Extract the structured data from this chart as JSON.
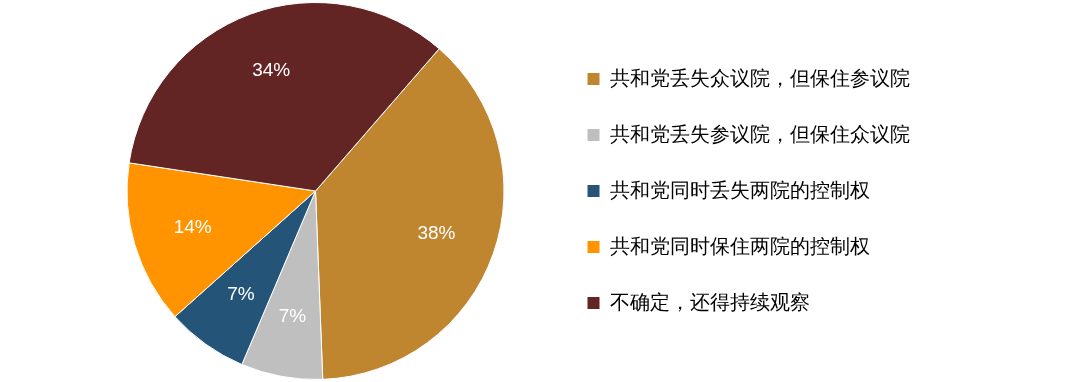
{
  "chart_data": {
    "type": "pie",
    "categories": [
      "共和党丢失众议院，但保住参议院",
      "共和党丢失参议院，但保住众议院",
      "共和党同时丢失两院的控制权",
      "共和党同时保住两院的控制权",
      "不确定，还得持续观察"
    ],
    "values": [
      38,
      7,
      7,
      14,
      34
    ],
    "colors": [
      "#c0862f",
      "#bfbfbf",
      "#245478",
      "#ff9400",
      "#632523"
    ],
    "value_labels": [
      "38%",
      "7%",
      "7%",
      "14%",
      "34%"
    ],
    "legend": "right"
  }
}
